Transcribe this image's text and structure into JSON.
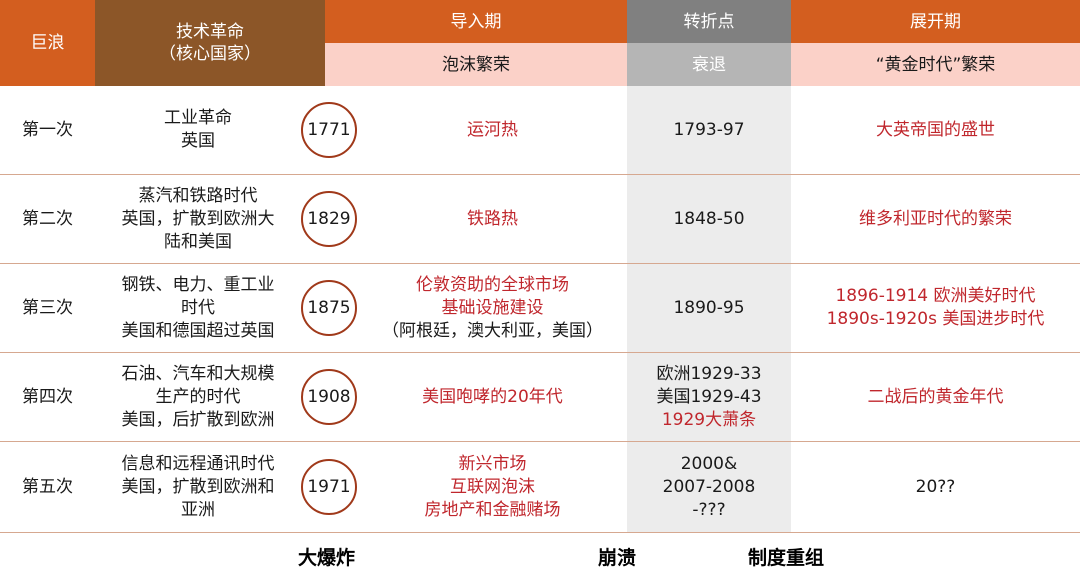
{
  "header": {
    "wave": "巨浪",
    "tech_line1": "技术革命",
    "tech_line2": "（核心国家）",
    "installation": "导入期",
    "installation_sub": "泡沫繁荣",
    "turning": "转折点",
    "turning_sub": "衰退",
    "deployment": "展开期",
    "deployment_sub": "“黄金时代”繁荣"
  },
  "rows": [
    {
      "wave": "第一次",
      "tech": [
        "工业革命",
        "英国"
      ],
      "year": "1771",
      "installation": [
        "运河热"
      ],
      "turning": [
        "1793-97"
      ],
      "deployment": [
        "大英帝国的盛世"
      ]
    },
    {
      "wave": "第二次",
      "tech": [
        "蒸汽和铁路时代",
        "英国，扩散到欧洲大",
        "陆和美国"
      ],
      "year": "1829",
      "installation": [
        "铁路热"
      ],
      "turning": [
        "1848-50"
      ],
      "deployment": [
        "维多利亚时代的繁荣"
      ]
    },
    {
      "wave": "第三次",
      "tech": [
        "钢铁、电力、重工业",
        "时代",
        "美国和德国超过英国"
      ],
      "year": "1875",
      "installation": [
        "伦敦资助的全球市场",
        "基础设施建设",
        "（阿根廷，澳大利亚，美国）"
      ],
      "turning": [
        "1890-95"
      ],
      "deployment": [
        "1896-1914 欧洲美好时代",
        "1890s-1920s 美国进步时代"
      ]
    },
    {
      "wave": "第四次",
      "tech": [
        "石油、汽车和大规模",
        "生产的时代",
        "美国，后扩散到欧洲"
      ],
      "year": "1908",
      "installation": [
        "美国咆哮的20年代"
      ],
      "turning": [
        "欧洲1929-33",
        "美国1929-43"
      ],
      "turning_red": "1929大萧条",
      "deployment": [
        "二战后的黄金年代"
      ]
    },
    {
      "wave": "第五次",
      "tech": [
        "信息和远程通讯时代",
        "美国，扩散到欧洲和",
        "亚洲"
      ],
      "year": "1971",
      "installation": [
        "新兴市场",
        "互联网泡沫",
        "房地产和金融赌场"
      ],
      "turning": [
        "2000&",
        "2007-2008",
        "-???"
      ],
      "deployment_black": "20??"
    }
  ],
  "footer": {
    "big_bang": "大爆炸",
    "collapse": "崩溃",
    "restructure": "制度重组"
  },
  "colors": {
    "orange": "#d35e1f",
    "brown": "#8c5628",
    "pink": "#fbd1c8",
    "gray_dark": "#808080",
    "gray_light": "#b5b5b5",
    "red_text": "#c0272d"
  }
}
